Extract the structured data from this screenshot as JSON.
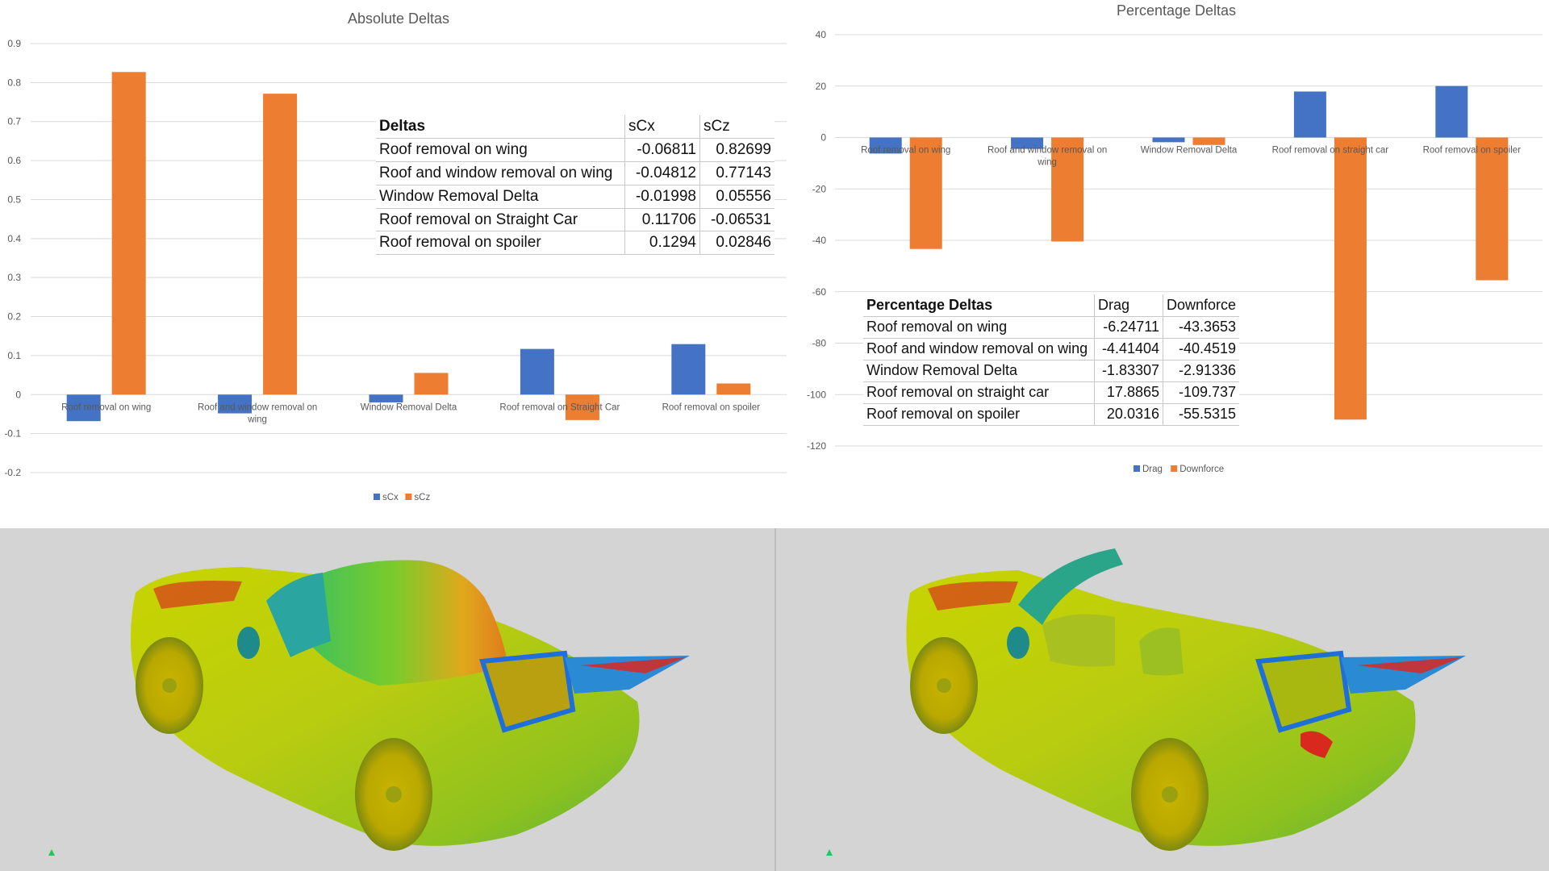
{
  "abs_chart": {
    "chart_data": {
      "type": "bar",
      "title": "Absolute Deltas",
      "categories": [
        "Roof removal on wing",
        "Roof and window removal on wing",
        "Window Removal Delta",
        "Roof removal on Straight Car",
        "Roof removal on spoiler"
      ],
      "series": [
        {
          "name": "sCx",
          "color": "#4472c4",
          "values": [
            -0.06811,
            -0.04812,
            -0.01998,
            0.11706,
            0.1294
          ]
        },
        {
          "name": "sCz",
          "color": "#ed7d31",
          "values": [
            0.82699,
            0.77143,
            0.05556,
            -0.06531,
            0.02846
          ]
        }
      ],
      "ylim": [
        -0.2,
        0.9
      ],
      "yticks": [
        "0.9",
        "0.8",
        "0.7",
        "0.6",
        "0.5",
        "0.4",
        "0.3",
        "0.2",
        "0.1",
        "0",
        "-0.1",
        "-0.2"
      ],
      "grid": true,
      "legend": "bottom"
    }
  },
  "abs_table": {
    "headers": [
      "Deltas",
      "sCx",
      "sCz"
    ],
    "rows": [
      [
        "Roof removal on wing",
        "-0.06811",
        "0.82699"
      ],
      [
        "Roof and window removal on wing",
        "-0.04812",
        "0.77143"
      ],
      [
        "Window Removal Delta",
        "-0.01998",
        "0.05556"
      ],
      [
        "Roof removal on Straight Car",
        "0.11706",
        "-0.06531"
      ],
      [
        "Roof removal on spoiler",
        "0.1294",
        "0.02846"
      ]
    ]
  },
  "pct_chart": {
    "chart_data": {
      "type": "bar",
      "title": "Percentage Deltas",
      "categories": [
        "Roof removal on wing",
        "Roof and window removal on wing",
        "Window Removal Delta",
        "Roof removal on straight car",
        "Roof removal on spoiler"
      ],
      "series": [
        {
          "name": "Drag",
          "color": "#4472c4",
          "values": [
            -6.24711,
            -4.41404,
            -1.83307,
            17.8865,
            20.0316
          ]
        },
        {
          "name": "Downforce",
          "color": "#ed7d31",
          "values": [
            -43.3653,
            -40.4519,
            -2.91336,
            -109.737,
            -55.5315
          ]
        }
      ],
      "ylim": [
        -120,
        40
      ],
      "yticks": [
        "40",
        "20",
        "0",
        "-20",
        "-40",
        "-60",
        "-80",
        "-100",
        "-120"
      ],
      "grid": true,
      "legend": "bottom"
    }
  },
  "pct_table": {
    "headers": [
      "Percentage Deltas",
      "Drag",
      "Downforce"
    ],
    "rows": [
      [
        "Roof removal on wing",
        "-6.24711",
        "-43.3653"
      ],
      [
        "Roof and window removal on wing",
        "-4.41404",
        "-40.4519"
      ],
      [
        "Window Removal Delta",
        "-1.83307",
        "-2.91336"
      ],
      [
        "Roof removal on straight car",
        "17.8865",
        "-109.737"
      ],
      [
        "Roof removal on spoiler",
        "20.0316",
        "-55.5315"
      ]
    ]
  },
  "renders": {
    "left_view": "car-with-roof-pressure-render",
    "right_view": "car-roof-removed-pressure-render",
    "colors": {
      "background": "#d4d4d4",
      "low": "#1e6fd9",
      "mid_low": "#2fbf6a",
      "mid": "#c8d400",
      "high": "#e07a1c",
      "peak": "#d9281e"
    }
  }
}
